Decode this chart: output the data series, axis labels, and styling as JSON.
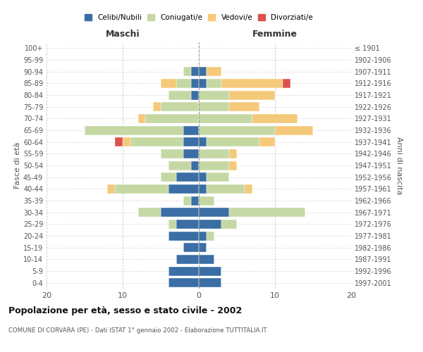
{
  "age_groups": [
    "0-4",
    "5-9",
    "10-14",
    "15-19",
    "20-24",
    "25-29",
    "30-34",
    "35-39",
    "40-44",
    "45-49",
    "50-54",
    "55-59",
    "60-64",
    "65-69",
    "70-74",
    "75-79",
    "80-84",
    "85-89",
    "90-94",
    "95-99",
    "100+"
  ],
  "birth_years": [
    "1997-2001",
    "1992-1996",
    "1987-1991",
    "1982-1986",
    "1977-1981",
    "1972-1976",
    "1967-1971",
    "1962-1966",
    "1957-1961",
    "1952-1956",
    "1947-1951",
    "1942-1946",
    "1937-1941",
    "1932-1936",
    "1927-1931",
    "1922-1926",
    "1917-1921",
    "1912-1916",
    "1907-1911",
    "1902-1906",
    "≤ 1901"
  ],
  "maschi": {
    "celibi": [
      4,
      4,
      3,
      2,
      4,
      3,
      5,
      1,
      4,
      3,
      1,
      2,
      2,
      2,
      0,
      0,
      1,
      1,
      1,
      0,
      0
    ],
    "coniugati": [
      0,
      0,
      0,
      0,
      0,
      1,
      3,
      1,
      7,
      2,
      3,
      3,
      7,
      13,
      7,
      5,
      3,
      2,
      1,
      0,
      0
    ],
    "vedovi": [
      0,
      0,
      0,
      0,
      0,
      0,
      0,
      0,
      1,
      0,
      0,
      0,
      1,
      0,
      1,
      1,
      0,
      2,
      0,
      0,
      0
    ],
    "divorziati": [
      0,
      0,
      0,
      0,
      0,
      0,
      0,
      0,
      0,
      0,
      0,
      0,
      1,
      0,
      0,
      0,
      0,
      0,
      0,
      0,
      0
    ]
  },
  "femmine": {
    "nubili": [
      3,
      3,
      2,
      1,
      1,
      3,
      4,
      0,
      1,
      1,
      0,
      0,
      1,
      0,
      0,
      0,
      0,
      1,
      1,
      0,
      0
    ],
    "coniugate": [
      0,
      0,
      0,
      0,
      1,
      2,
      10,
      2,
      5,
      3,
      4,
      4,
      7,
      10,
      7,
      4,
      4,
      2,
      0,
      0,
      0
    ],
    "vedove": [
      0,
      0,
      0,
      0,
      0,
      0,
      0,
      0,
      1,
      0,
      1,
      1,
      2,
      5,
      6,
      4,
      6,
      8,
      2,
      0,
      0
    ],
    "divorziate": [
      0,
      0,
      0,
      0,
      0,
      0,
      0,
      0,
      0,
      0,
      0,
      0,
      0,
      0,
      0,
      0,
      0,
      1,
      0,
      0,
      0
    ]
  },
  "colors": {
    "celibi": "#3a6ea5",
    "coniugati": "#c5d8a4",
    "vedovi": "#f5c97a",
    "divorziati": "#d9534f"
  },
  "xlim": 20,
  "title": "Popolazione per età, sesso e stato civile - 2002",
  "subtitle": "COMUNE DI CORVARA (PE) - Dati ISTAT 1° gennaio 2002 - Elaborazione TUTTITALIA.IT",
  "ylabel_left": "Fasce di età",
  "ylabel_right": "Anni di nascita",
  "xlabel_maschi": "Maschi",
  "xlabel_femmine": "Femmine",
  "legend_labels": [
    "Celibi/Nubili",
    "Coniugati/e",
    "Vedovi/e",
    "Divorziati/e"
  ],
  "bg_color": "#ffffff",
  "grid_color": "#cccccc"
}
